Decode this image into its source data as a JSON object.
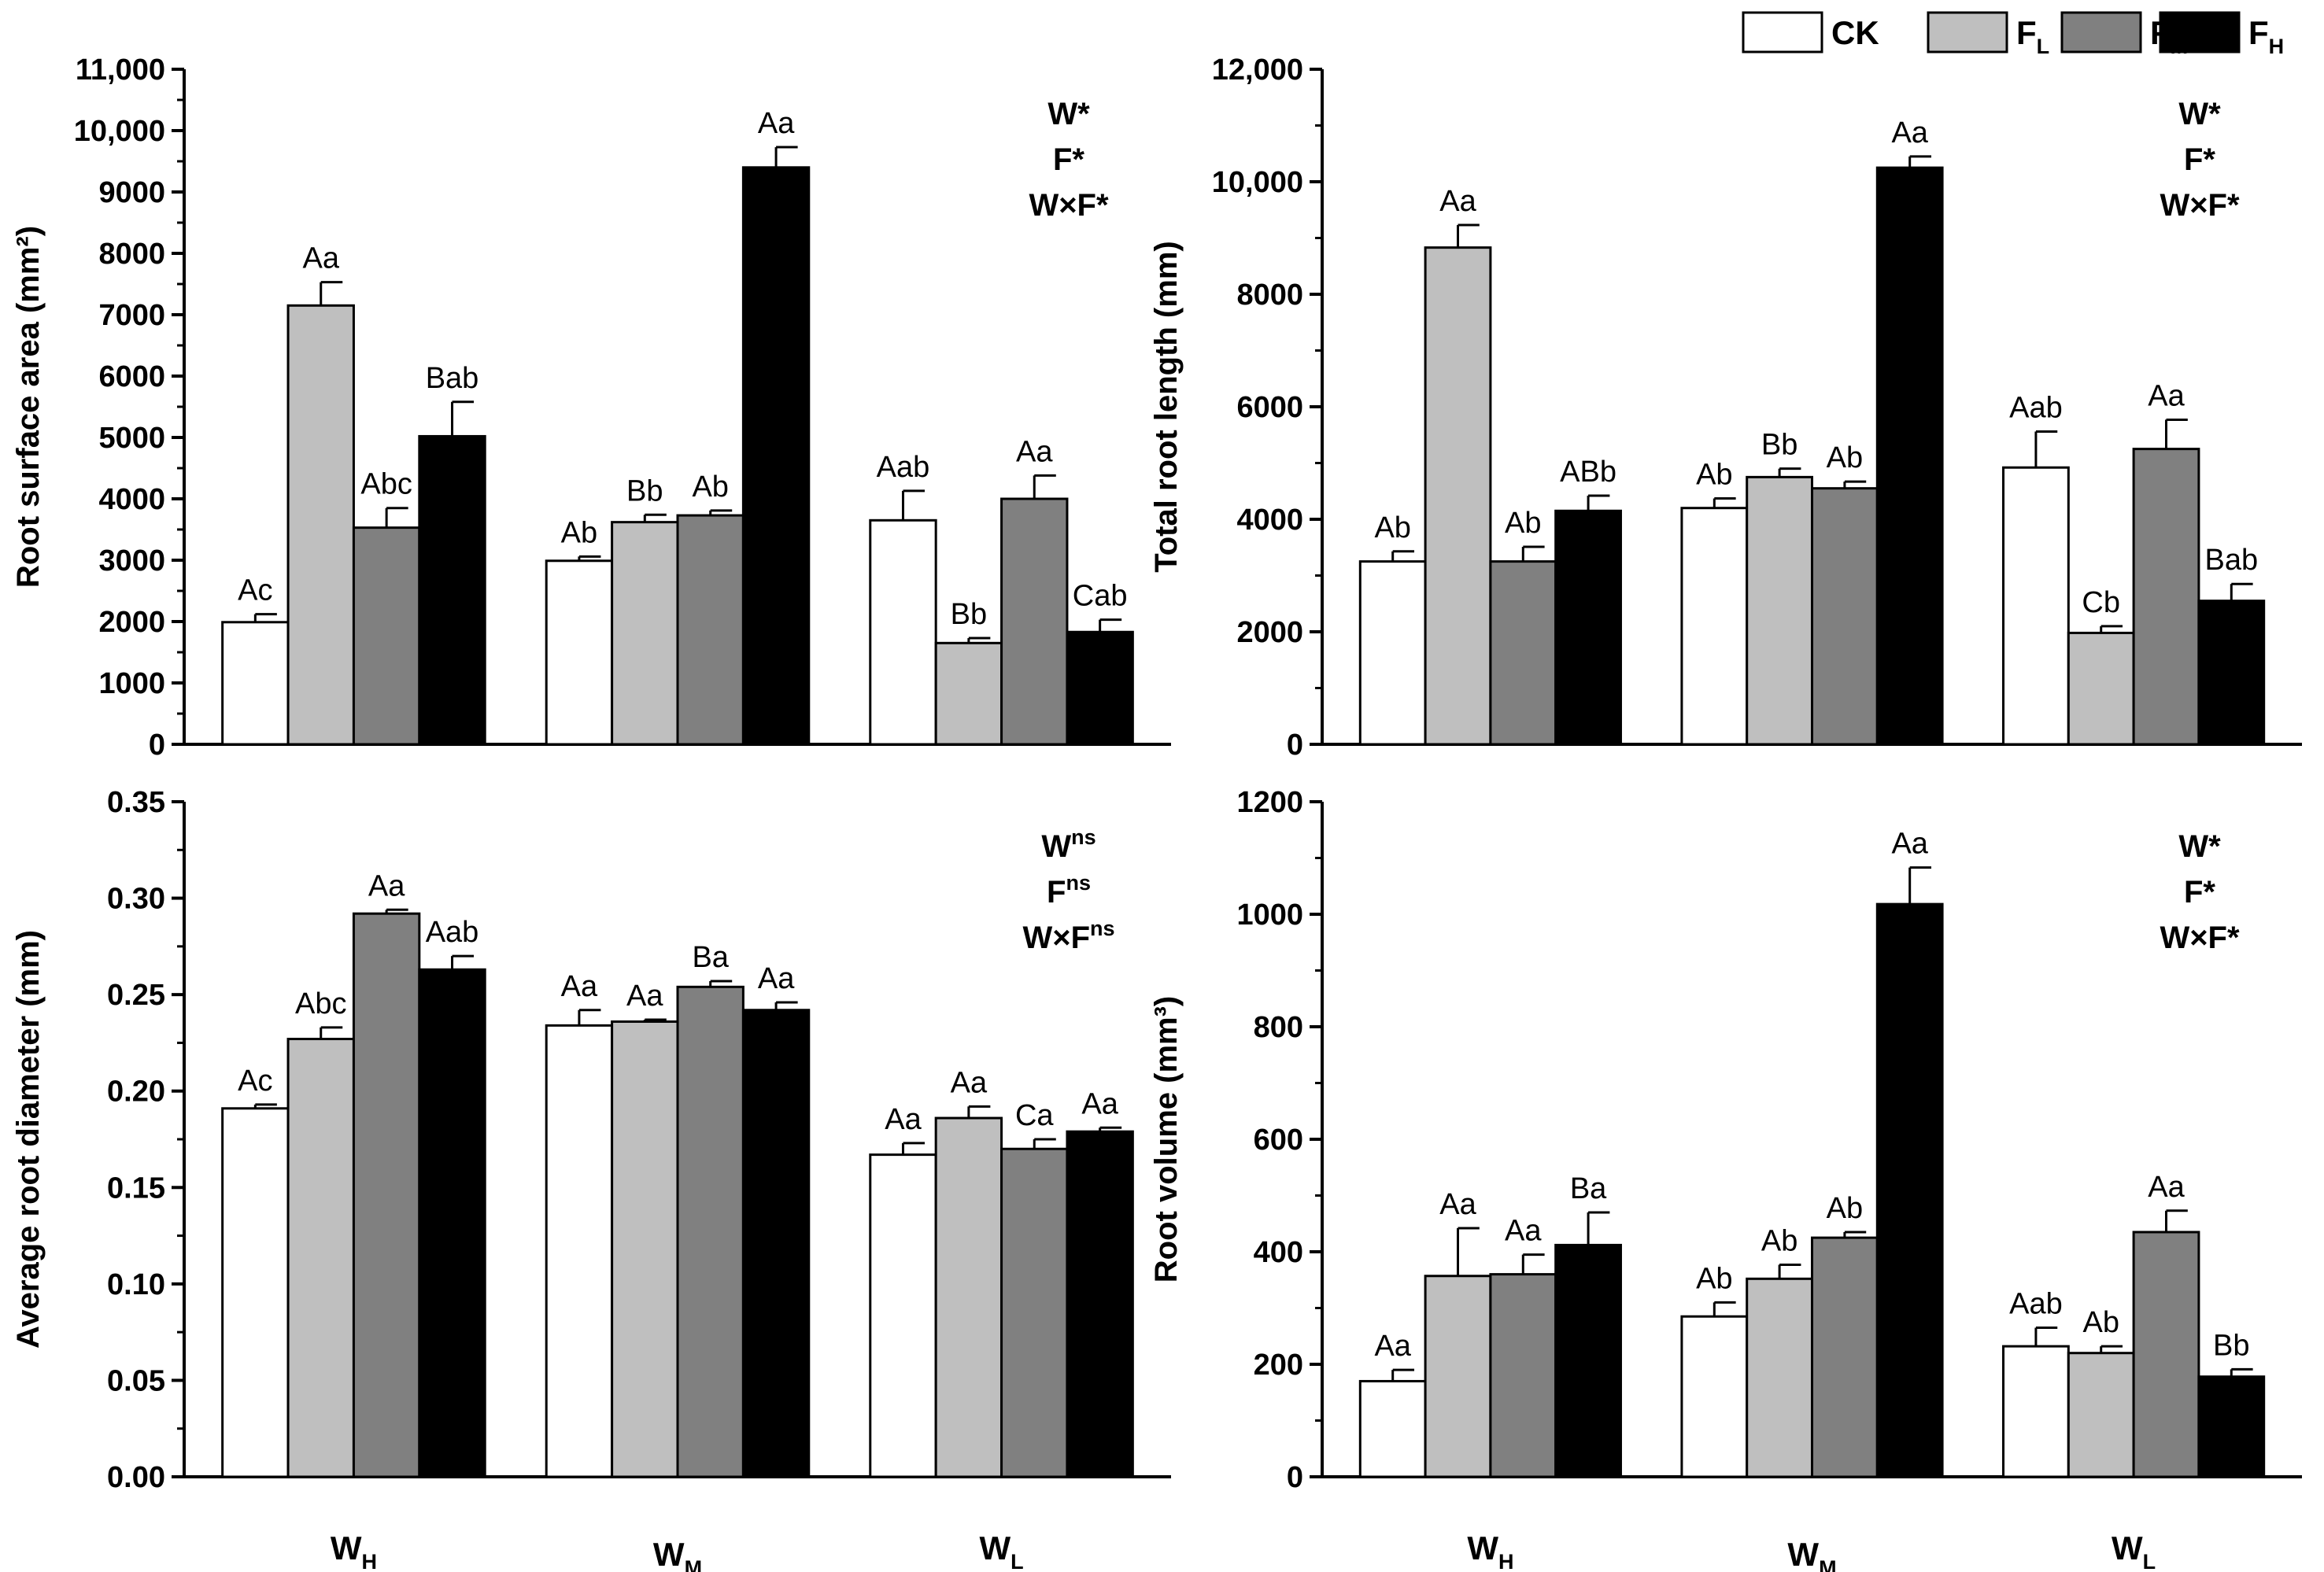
{
  "colors": {
    "CK": "#ffffff",
    "FL": "#bfbfbf",
    "FM": "#808080",
    "FH": "#000000",
    "axis": "#000000"
  },
  "legend": {
    "position": "top-right",
    "items": [
      {
        "key": "CK",
        "base": "CK",
        "sub": ""
      },
      {
        "key": "FL",
        "base": "F",
        "sub": "L"
      },
      {
        "key": "FM",
        "base": "F",
        "sub": "M"
      },
      {
        "key": "FH",
        "base": "F",
        "sub": "H"
      }
    ]
  },
  "chart_data": [
    {
      "type": "bar",
      "ylabel": "Root surface area (mm²)",
      "ylim": [
        0,
        11000
      ],
      "yticks": [
        "0",
        "1000",
        "2000",
        "3000",
        "4000",
        "5000",
        "6000",
        "7000",
        "8000",
        "9000",
        "10,000",
        "11,000"
      ],
      "categories": [
        {
          "base": "W",
          "sub": "H"
        },
        {
          "base": "W",
          "sub": "M"
        },
        {
          "base": "W",
          "sub": "L"
        }
      ],
      "stats": [
        {
          "base": "W*",
          "sup": ""
        },
        {
          "base": "F*",
          "sup": ""
        },
        {
          "base": "W×F*",
          "sup": ""
        }
      ],
      "series": [
        {
          "name": "CK",
          "values": [
            1990,
            2990,
            3650
          ],
          "errors": [
            130,
            70,
            480
          ],
          "labels": [
            "Ac",
            "Ab",
            "Aab"
          ]
        },
        {
          "name": "FL",
          "values": [
            7150,
            3620,
            1650
          ],
          "errors": [
            380,
            120,
            80
          ],
          "labels": [
            "Aa",
            "Bb",
            "Bb"
          ]
        },
        {
          "name": "FM",
          "values": [
            3530,
            3730,
            4000
          ],
          "errors": [
            320,
            80,
            380
          ],
          "labels": [
            "Abc",
            "Ab",
            "Aa"
          ]
        },
        {
          "name": "FH",
          "values": [
            5020,
            9400,
            1830
          ],
          "errors": [
            560,
            330,
            200
          ],
          "labels": [
            "Bab",
            "Aa",
            "Cab"
          ]
        }
      ]
    },
    {
      "type": "bar",
      "ylabel": "Total root length (mm)",
      "ylim": [
        0,
        12000
      ],
      "yticks": [
        "0",
        "2000",
        "4000",
        "6000",
        "8000",
        "10,000",
        "12,000"
      ],
      "categories": [
        {
          "base": "W",
          "sub": "H"
        },
        {
          "base": "W",
          "sub": "M"
        },
        {
          "base": "W",
          "sub": "L"
        }
      ],
      "stats": [
        {
          "base": "W*",
          "sup": ""
        },
        {
          "base": "F*",
          "sup": ""
        },
        {
          "base": "W×F*",
          "sup": ""
        }
      ],
      "series": [
        {
          "name": "CK",
          "values": [
            3250,
            4200,
            4920
          ],
          "errors": [
            180,
            170,
            640
          ],
          "labels": [
            "Ab",
            "Ab",
            "Aab"
          ]
        },
        {
          "name": "FL",
          "values": [
            8830,
            4750,
            1980
          ],
          "errors": [
            400,
            150,
            120
          ],
          "labels": [
            "Aa",
            "Bb",
            "Cb"
          ]
        },
        {
          "name": "FM",
          "values": [
            3250,
            4550,
            5250
          ],
          "errors": [
            260,
            120,
            520
          ],
          "labels": [
            "Ab",
            "Ab",
            "Aa"
          ]
        },
        {
          "name": "FH",
          "values": [
            4150,
            10250,
            2550
          ],
          "errors": [
            270,
            200,
            300
          ],
          "labels": [
            "ABb",
            "Aa",
            "Bab"
          ]
        }
      ]
    },
    {
      "type": "bar",
      "ylabel": "Average root diameter (mm)",
      "ylim": [
        0,
        0.35
      ],
      "yticks": [
        "0.00",
        "0.05",
        "0.10",
        "0.15",
        "0.20",
        "0.25",
        "0.30",
        "0.35"
      ],
      "categories": [
        {
          "base": "W",
          "sub": "H"
        },
        {
          "base": "W",
          "sub": "M"
        },
        {
          "base": "W",
          "sub": "L"
        }
      ],
      "stats": [
        {
          "base": "W",
          "sup": "ns"
        },
        {
          "base": "F",
          "sup": "ns"
        },
        {
          "base": "W×F",
          "sup": "ns"
        }
      ],
      "series": [
        {
          "name": "CK",
          "values": [
            0.191,
            0.234,
            0.167
          ],
          "errors": [
            0.002,
            0.008,
            0.006
          ],
          "labels": [
            "Ac",
            "Aa",
            "Aa"
          ]
        },
        {
          "name": "FL",
          "values": [
            0.227,
            0.236,
            0.186
          ],
          "errors": [
            0.006,
            0.001,
            0.006
          ],
          "labels": [
            "Abc",
            "Aa",
            "Aa"
          ]
        },
        {
          "name": "FM",
          "values": [
            0.292,
            0.254,
            0.17
          ],
          "errors": [
            0.002,
            0.003,
            0.005
          ],
          "labels": [
            "Aa",
            "Ba",
            "Ca"
          ]
        },
        {
          "name": "FH",
          "values": [
            0.263,
            0.242,
            0.179
          ],
          "errors": [
            0.007,
            0.004,
            0.002
          ],
          "labels": [
            "Aab",
            "Aa",
            "Aa"
          ]
        }
      ]
    },
    {
      "type": "bar",
      "ylabel": "Root volume (mm³)",
      "ylim": [
        0,
        1200
      ],
      "yticks": [
        "0",
        "200",
        "400",
        "600",
        "800",
        "1000",
        "1200"
      ],
      "categories": [
        {
          "base": "W",
          "sub": "H"
        },
        {
          "base": "W",
          "sub": "M"
        },
        {
          "base": "W",
          "sub": "L"
        }
      ],
      "stats": [
        {
          "base": "W*",
          "sup": ""
        },
        {
          "base": "F*",
          "sup": ""
        },
        {
          "base": "W×F*",
          "sup": ""
        }
      ],
      "series": [
        {
          "name": "CK",
          "values": [
            170,
            285,
            232
          ],
          "errors": [
            20,
            25,
            33
          ],
          "labels": [
            "Aa",
            "Ab",
            "Aab"
          ]
        },
        {
          "name": "FL",
          "values": [
            357,
            352,
            220
          ],
          "errors": [
            85,
            25,
            12
          ],
          "labels": [
            "Aa",
            "Ab",
            "Ab"
          ]
        },
        {
          "name": "FM",
          "values": [
            360,
            425,
            435
          ],
          "errors": [
            35,
            10,
            38
          ],
          "labels": [
            "Aa",
            "Ab",
            "Aa"
          ]
        },
        {
          "name": "FH",
          "values": [
            412,
            1018,
            178
          ],
          "errors": [
            58,
            65,
            13
          ],
          "labels": [
            "Ba",
            "Aa",
            "Bb"
          ]
        }
      ]
    }
  ]
}
